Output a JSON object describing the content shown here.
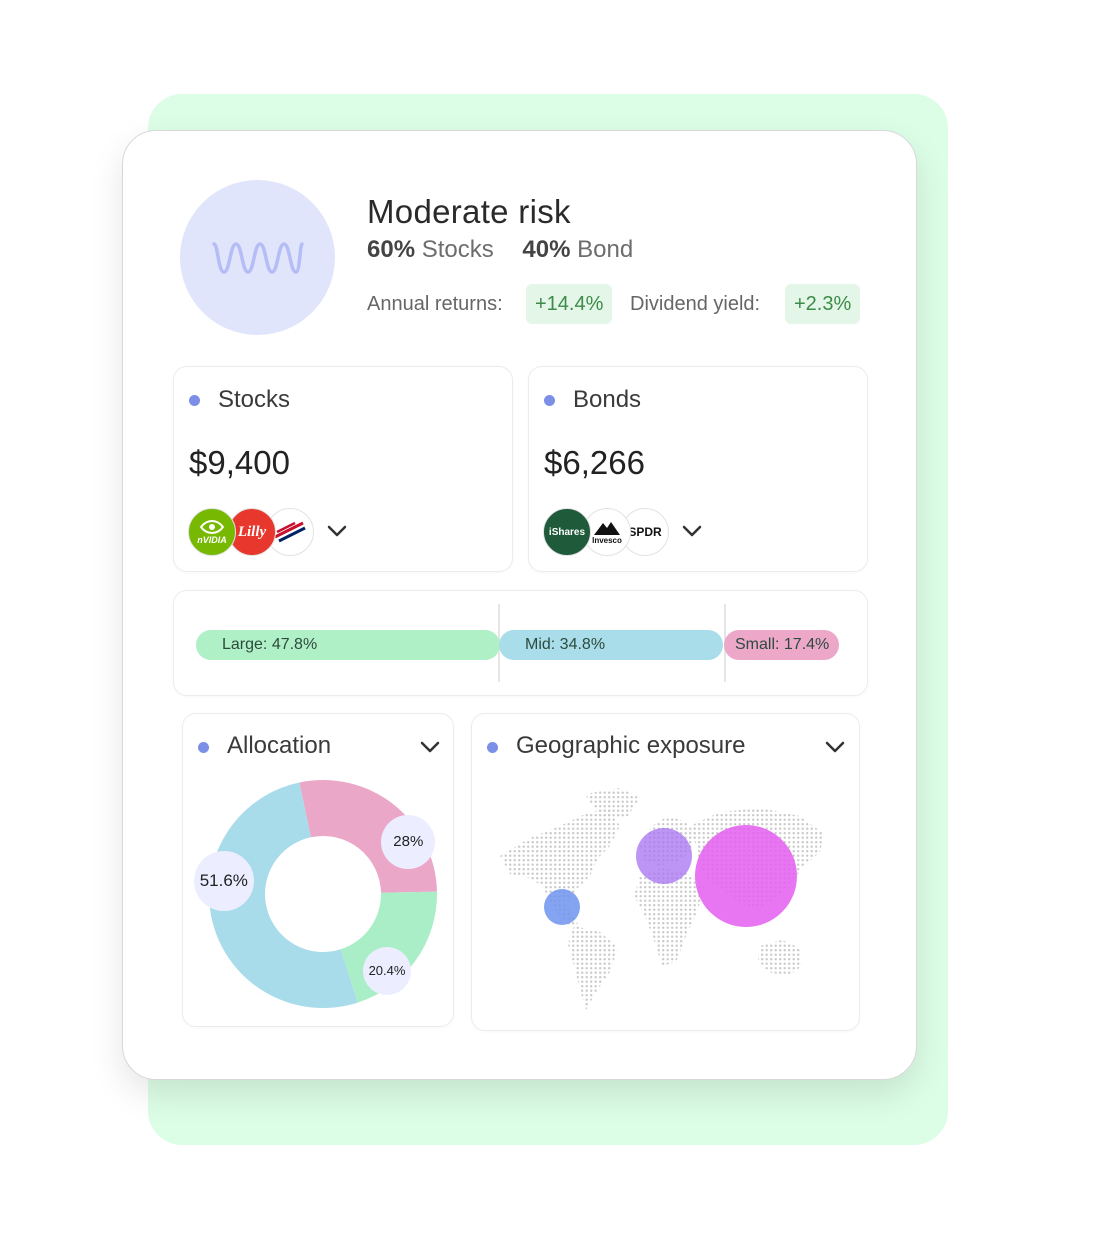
{
  "profile": {
    "title": "Moderate risk",
    "stocks_pct": "60%",
    "stocks_label": "Stocks",
    "bond_pct": "40%",
    "bond_label": "Bond",
    "annual_returns_label": "Annual returns:",
    "annual_returns_value": "+14.4%",
    "dividend_yield_label": "Dividend yield:",
    "dividend_yield_value": "+2.3%"
  },
  "stocks": {
    "title": "Stocks",
    "amount": "$9,400",
    "holdings": [
      {
        "name": "NVIDIA",
        "logo_text": "nVIDIA",
        "color": "#76b900"
      },
      {
        "name": "Lilly",
        "logo_text": "Lilly",
        "color": "#e8382d"
      },
      {
        "name": "Bank of America",
        "logo_text": "",
        "color": "#ffffff"
      }
    ]
  },
  "bonds": {
    "title": "Bonds",
    "amount": "$6,266",
    "holdings": [
      {
        "name": "iShares",
        "logo_text": "iShares",
        "color": "#1f5a3b"
      },
      {
        "name": "Invesco",
        "logo_text": "Invesco",
        "color": "#ffffff"
      },
      {
        "name": "SPDR",
        "logo_text": "SPDR",
        "color": "#ffffff"
      }
    ]
  },
  "market_cap": {
    "segments": [
      {
        "label": "Large: 47.8%",
        "value": 47.8,
        "color": "#b0f0c7"
      },
      {
        "label": "Mid: 34.8%",
        "value": 34.8,
        "color": "#a8dde9"
      },
      {
        "label": "Small: 17.4%",
        "value": 17.4,
        "color": "#eca7c9"
      }
    ]
  },
  "allocation": {
    "title": "Allocation"
  },
  "geo": {
    "title": "Geographic exposure"
  },
  "chart_data": {
    "type": "pie",
    "categories": [
      "28%",
      "20.4%",
      "51.6%"
    ],
    "values": [
      28,
      20.4,
      51.6
    ],
    "colors": [
      "#eba7c8",
      "#a9eec6",
      "#a9dcea"
    ]
  },
  "colors": {
    "accent_dot": "#7b8fe6",
    "bg_panel": "#dcfde6",
    "positive_text": "#3d8b49",
    "positive_bg": "#e3f6e7"
  },
  "icons": {
    "avatar": "wave-icon",
    "expand": "chevron-down-icon"
  }
}
